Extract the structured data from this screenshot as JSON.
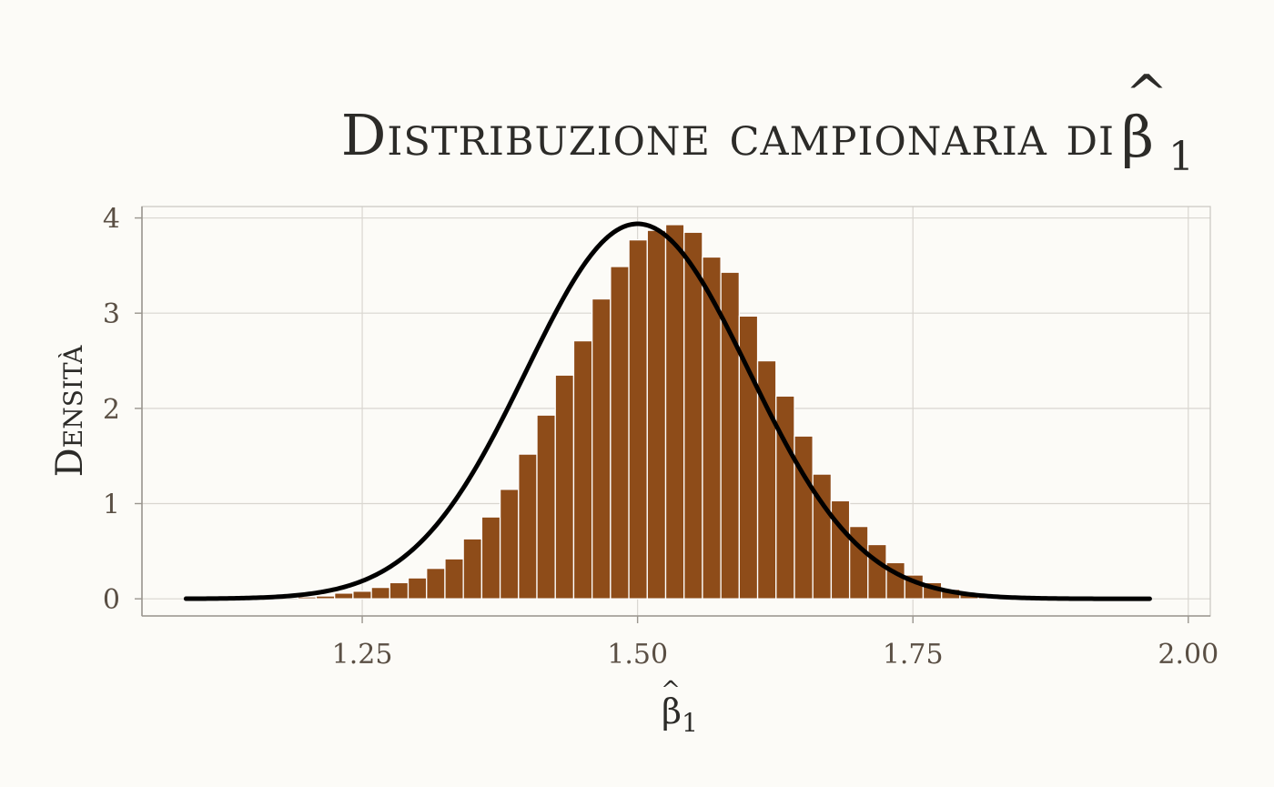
{
  "chart_data": {
    "type": "bar",
    "title": "Distribuzione campionaria di",
    "title_symbol": "β",
    "title_hat": "^",
    "title_subscript": "1",
    "xlabel_symbol": "β",
    "xlabel_hat": "^",
    "xlabel_subscript": "1",
    "ylabel": "Densità",
    "xlim": [
      1.05,
      2.02
    ],
    "ylim": [
      -0.18,
      4.12
    ],
    "x_ticks": [
      1.25,
      1.5,
      1.75,
      2.0
    ],
    "x_tick_labels": [
      "1.25",
      "1.50",
      "1.75",
      "2.00"
    ],
    "y_ticks": [
      0,
      1,
      2,
      3,
      4
    ],
    "y_tick_labels": [
      "0",
      "1",
      "2",
      "3",
      "4"
    ],
    "grid": true,
    "histogram": {
      "bin_width": 0.0167,
      "bin_start": 1.1915,
      "color": "#8e4c19",
      "values": [
        0.02,
        0.03,
        0.06,
        0.08,
        0.12,
        0.17,
        0.22,
        0.32,
        0.42,
        0.63,
        0.86,
        1.15,
        1.52,
        1.93,
        2.35,
        2.71,
        3.15,
        3.49,
        3.77,
        3.87,
        3.93,
        3.85,
        3.59,
        3.43,
        2.97,
        2.5,
        2.13,
        1.71,
        1.31,
        1.03,
        0.76,
        0.57,
        0.38,
        0.25,
        0.17,
        0.1,
        0.06,
        0.03
      ]
    },
    "normal_curve": {
      "mean": 1.5,
      "sd": 0.1013,
      "x_range": [
        1.09,
        1.965
      ],
      "color": "#000000"
    }
  }
}
